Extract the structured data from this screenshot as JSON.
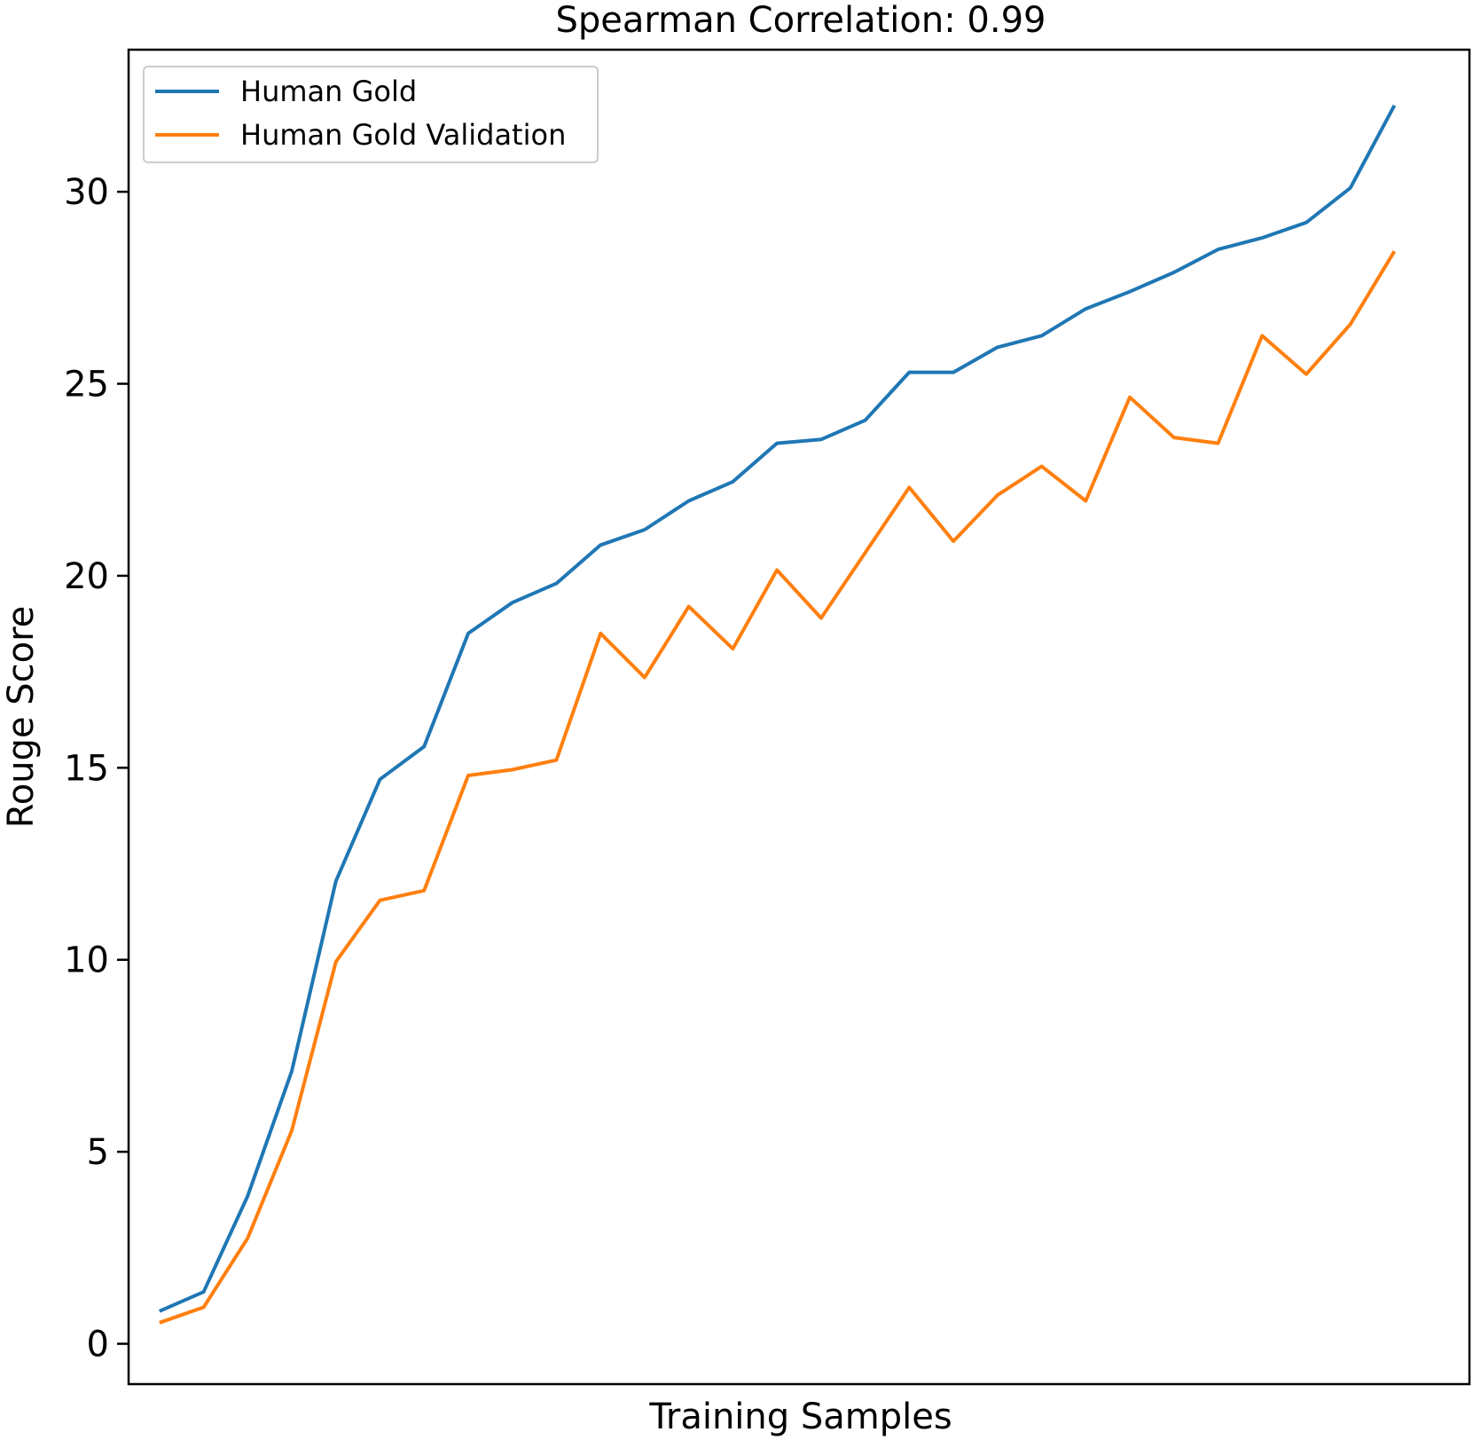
{
  "chart_data": {
    "type": "line",
    "title": "Spearman Correlation: 0.99",
    "xlabel": "Training Samples",
    "ylabel": "Rouge Score",
    "ylim": [
      -1.05,
      33.7
    ],
    "xlim": [
      -0.7,
      29.7
    ],
    "yticks": [
      0,
      5,
      10,
      15,
      20,
      25,
      30
    ],
    "x": [
      0,
      1,
      2,
      3,
      4,
      5,
      6,
      7,
      8,
      9,
      10,
      11,
      12,
      13,
      14,
      15,
      16,
      17,
      18,
      19,
      20,
      21,
      22,
      23,
      24,
      25,
      26,
      27,
      28
    ],
    "series": [
      {
        "name": "Human Gold",
        "color": "#1f77b4",
        "values": [
          0.85,
          1.35,
          3.85,
          7.1,
          12.05,
          14.7,
          15.55,
          18.5,
          19.3,
          19.8,
          20.8,
          21.2,
          21.95,
          22.45,
          23.45,
          23.55,
          24.05,
          25.3,
          25.3,
          25.95,
          26.25,
          26.95,
          27.4,
          27.9,
          28.5,
          28.8,
          29.2,
          30.1,
          32.25
        ]
      },
      {
        "name": "Human Gold Validation",
        "color": "#ff7f0e",
        "values": [
          0.55,
          0.95,
          2.75,
          5.55,
          9.95,
          11.55,
          11.8,
          14.8,
          14.95,
          15.2,
          18.5,
          17.35,
          19.2,
          18.1,
          20.15,
          18.9,
          20.6,
          22.3,
          20.9,
          22.1,
          22.85,
          21.95,
          24.65,
          23.6,
          23.45,
          26.25,
          25.25,
          26.55,
          28.45
        ]
      }
    ],
    "legend_position": "top-left",
    "grid": false
  }
}
